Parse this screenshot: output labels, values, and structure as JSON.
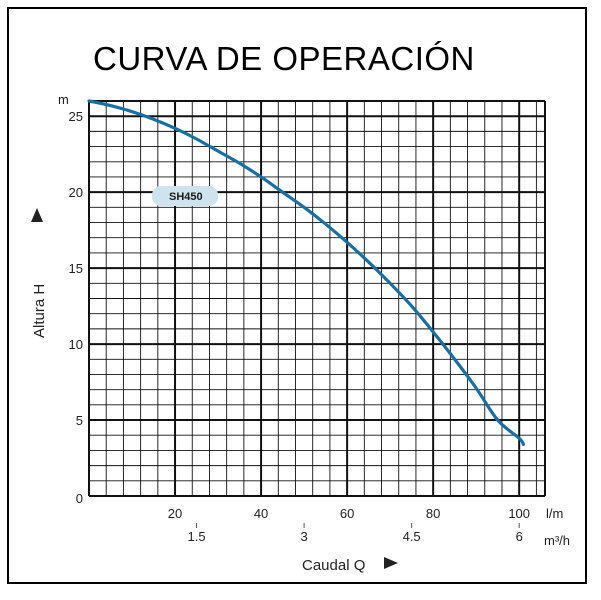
{
  "chart_data": {
    "type": "line",
    "title": "CURVA DE OPERACIÓN",
    "ylabel": "Altura H",
    "yunit": "m",
    "xlabel": "Caudal Q",
    "xunit": "l/m",
    "x2unit": "m³/h",
    "ylim": [
      0,
      26
    ],
    "xlim": [
      0,
      106
    ],
    "y_ticks": [
      0,
      5,
      10,
      15,
      20,
      25
    ],
    "x_ticks": [
      20,
      40,
      60,
      80,
      100
    ],
    "x2_ticks": [
      {
        "label": "1.5",
        "lpm": 25
      },
      {
        "label": "3",
        "lpm": 50
      },
      {
        "label": "4.5",
        "lpm": 75
      },
      {
        "label": "6",
        "lpm": 100
      }
    ],
    "grid": true,
    "series": [
      {
        "name": "SH450",
        "color": "#1a6fa0",
        "x": [
          0,
          5,
          10,
          15,
          20,
          25,
          30,
          35,
          40,
          45,
          50,
          55,
          60,
          65,
          70,
          75,
          80,
          85,
          90,
          95,
          100,
          101
        ],
        "y": [
          26.0,
          25.7,
          25.3,
          24.8,
          24.2,
          23.5,
          22.7,
          21.9,
          21.0,
          20.0,
          19.0,
          17.9,
          16.7,
          15.4,
          14.0,
          12.5,
          10.8,
          9.0,
          7.1,
          5.0,
          3.8,
          3.4
        ]
      }
    ]
  }
}
